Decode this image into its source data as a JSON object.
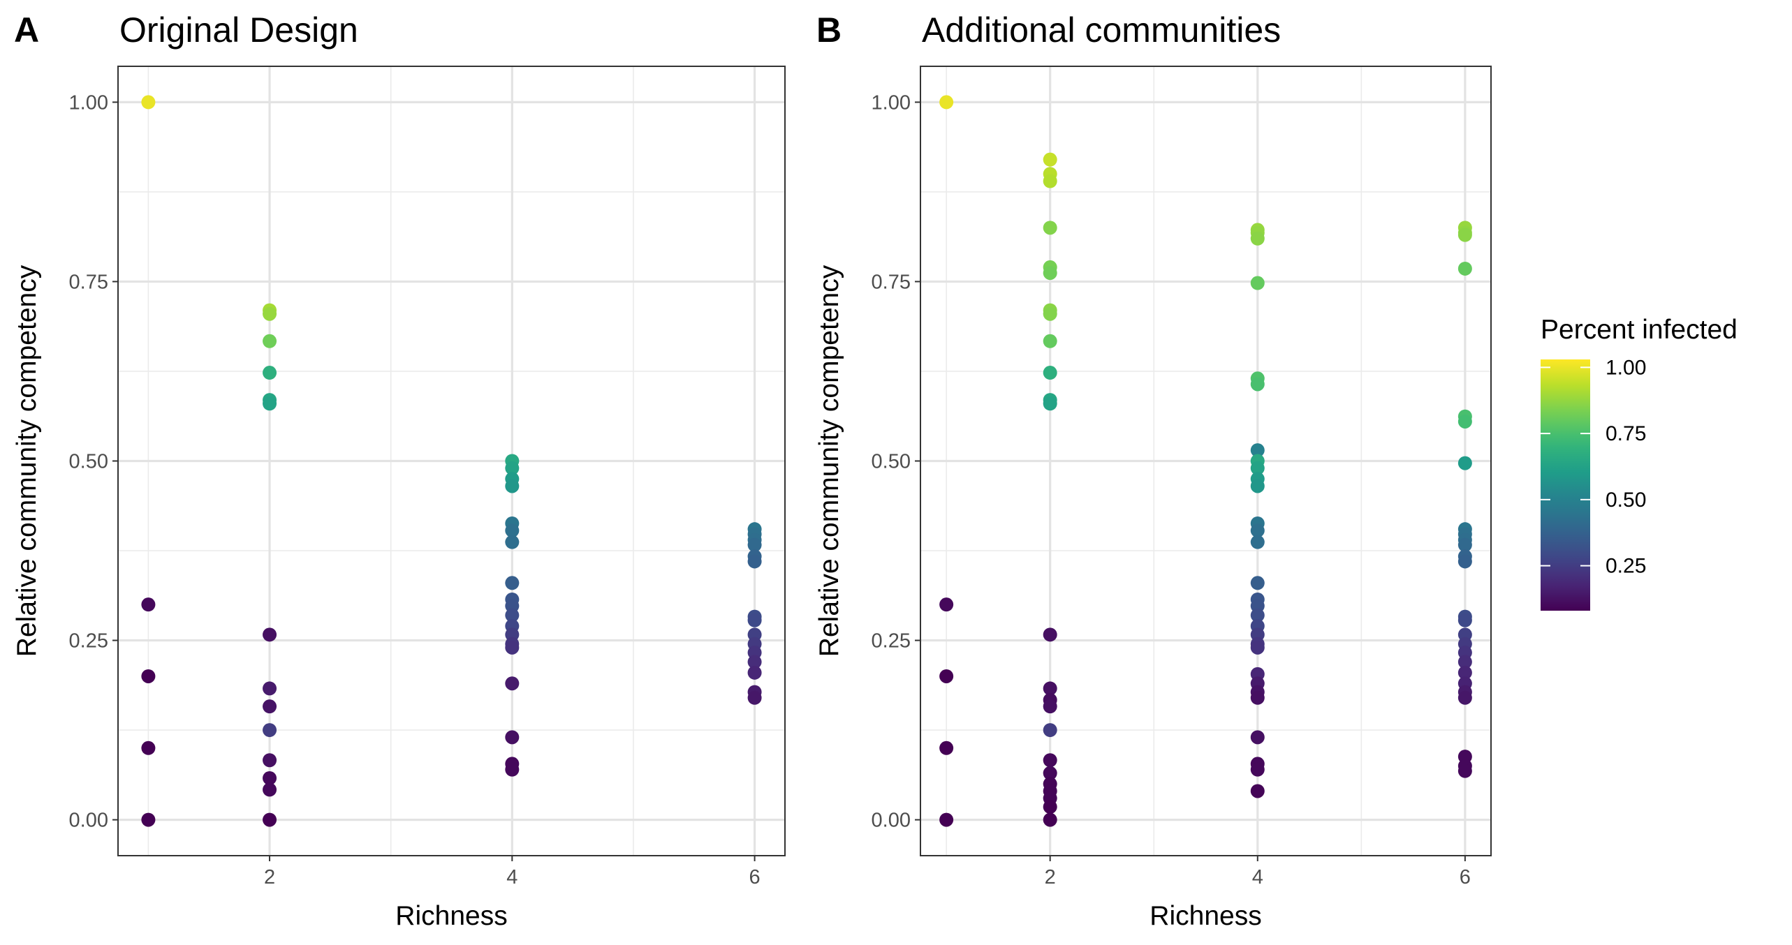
{
  "chart_data": [
    {
      "type": "scatter",
      "panel_label": "A",
      "title": "Original Design",
      "x_label": "Richness",
      "y_label": "Relative community competency",
      "xlim": [
        0.75,
        6.25
      ],
      "ylim": [
        -0.05,
        1.05
      ],
      "xticks": [
        2,
        4,
        6
      ],
      "yticks": [
        {
          "value": 0,
          "label": "0.00"
        },
        {
          "value": 0.25,
          "label": "0.25"
        },
        {
          "value": 0.5,
          "label": "0.50"
        },
        {
          "value": 0.75,
          "label": "0.75"
        },
        {
          "value": 1,
          "label": "1.00"
        }
      ],
      "grid": true,
      "colormap": "viridis",
      "x": [
        1,
        1,
        1,
        1,
        1,
        2,
        2,
        2,
        2,
        2,
        2,
        2,
        2,
        2,
        2,
        2,
        2,
        2,
        2,
        4,
        4,
        4,
        4,
        4,
        4,
        4,
        4,
        4,
        4,
        4,
        4,
        4,
        4,
        4,
        4,
        4,
        4,
        4,
        6,
        6,
        6,
        6,
        6,
        6,
        6,
        6,
        6,
        6,
        6,
        6,
        6,
        6,
        6
      ],
      "y": [
        1.0,
        0.3,
        0.2,
        0.1,
        0.0,
        0.71,
        0.705,
        0.667,
        0.623,
        0.585,
        0.58,
        0.258,
        0.183,
        0.158,
        0.125,
        0.083,
        0.058,
        0.042,
        0.0,
        0.5,
        0.49,
        0.475,
        0.465,
        0.413,
        0.403,
        0.387,
        0.33,
        0.307,
        0.298,
        0.285,
        0.27,
        0.258,
        0.245,
        0.24,
        0.19,
        0.115,
        0.078,
        0.07,
        0.405,
        0.398,
        0.39,
        0.383,
        0.367,
        0.36,
        0.283,
        0.278,
        0.258,
        0.245,
        0.233,
        0.22,
        0.205,
        0.178,
        0.17
      ],
      "percent_infected": [
        1.0,
        0.1,
        0.08,
        0.08,
        0.08,
        0.9,
        0.88,
        0.82,
        0.68,
        0.64,
        0.63,
        0.12,
        0.15,
        0.13,
        0.25,
        0.12,
        0.1,
        0.1,
        0.08,
        0.65,
        0.63,
        0.6,
        0.58,
        0.45,
        0.43,
        0.42,
        0.36,
        0.33,
        0.32,
        0.3,
        0.28,
        0.25,
        0.23,
        0.22,
        0.15,
        0.12,
        0.1,
        0.1,
        0.45,
        0.43,
        0.42,
        0.4,
        0.38,
        0.37,
        0.3,
        0.29,
        0.26,
        0.24,
        0.22,
        0.2,
        0.18,
        0.15,
        0.14
      ]
    },
    {
      "type": "scatter",
      "panel_label": "B",
      "title": "Additional communities",
      "x_label": "Richness",
      "y_label": "Relative community competency",
      "xlim": [
        0.75,
        6.25
      ],
      "ylim": [
        -0.05,
        1.05
      ],
      "xticks": [
        2,
        4,
        6
      ],
      "yticks": [
        {
          "value": 0,
          "label": "0.00"
        },
        {
          "value": 0.25,
          "label": "0.25"
        },
        {
          "value": 0.5,
          "label": "0.50"
        },
        {
          "value": 0.75,
          "label": "0.75"
        },
        {
          "value": 1,
          "label": "1.00"
        }
      ],
      "grid": true,
      "colormap": "viridis",
      "x": [
        1,
        1,
        1,
        1,
        1,
        2,
        2,
        2,
        2,
        2,
        2,
        2,
        2,
        2,
        2,
        2,
        2,
        2,
        2,
        2,
        2,
        2,
        2,
        2,
        2,
        2,
        2,
        2,
        2,
        4,
        4,
        4,
        4,
        4,
        4,
        4,
        4,
        4,
        4,
        4,
        4,
        4,
        4,
        4,
        4,
        4,
        4,
        4,
        4,
        4,
        4,
        4,
        4,
        4,
        4,
        4,
        4,
        4,
        4,
        6,
        6,
        6,
        6,
        6,
        6,
        6,
        6,
        6,
        6,
        6,
        6,
        6,
        6,
        6,
        6,
        6,
        6,
        6,
        6,
        6,
        6,
        6,
        6,
        6,
        6
      ],
      "y": [
        1.0,
        0.3,
        0.2,
        0.1,
        0.0,
        0.92,
        0.9,
        0.89,
        0.825,
        0.77,
        0.762,
        0.71,
        0.705,
        0.667,
        0.623,
        0.585,
        0.58,
        0.258,
        0.183,
        0.167,
        0.158,
        0.125,
        0.083,
        0.065,
        0.05,
        0.04,
        0.03,
        0.018,
        0.0,
        0.822,
        0.818,
        0.81,
        0.748,
        0.615,
        0.607,
        0.515,
        0.5,
        0.49,
        0.475,
        0.465,
        0.413,
        0.403,
        0.387,
        0.33,
        0.307,
        0.298,
        0.285,
        0.27,
        0.258,
        0.245,
        0.24,
        0.203,
        0.19,
        0.178,
        0.17,
        0.115,
        0.078,
        0.07,
        0.04,
        0.825,
        0.818,
        0.815,
        0.768,
        0.562,
        0.555,
        0.497,
        0.405,
        0.398,
        0.39,
        0.383,
        0.367,
        0.36,
        0.283,
        0.278,
        0.258,
        0.245,
        0.233,
        0.22,
        0.205,
        0.19,
        0.178,
        0.17,
        0.088,
        0.075,
        0.068
      ],
      "percent_infected": [
        1.0,
        0.1,
        0.08,
        0.08,
        0.08,
        0.95,
        0.93,
        0.92,
        0.85,
        0.83,
        0.82,
        0.86,
        0.85,
        0.8,
        0.68,
        0.64,
        0.63,
        0.12,
        0.12,
        0.11,
        0.12,
        0.25,
        0.1,
        0.1,
        0.09,
        0.09,
        0.09,
        0.08,
        0.08,
        0.88,
        0.87,
        0.86,
        0.8,
        0.76,
        0.75,
        0.5,
        0.65,
        0.63,
        0.6,
        0.58,
        0.45,
        0.43,
        0.42,
        0.36,
        0.33,
        0.32,
        0.3,
        0.28,
        0.25,
        0.23,
        0.22,
        0.18,
        0.15,
        0.13,
        0.12,
        0.12,
        0.1,
        0.1,
        0.09,
        0.88,
        0.87,
        0.86,
        0.8,
        0.75,
        0.74,
        0.6,
        0.45,
        0.43,
        0.42,
        0.4,
        0.38,
        0.37,
        0.3,
        0.29,
        0.26,
        0.24,
        0.22,
        0.2,
        0.18,
        0.17,
        0.15,
        0.14,
        0.1,
        0.1,
        0.1
      ],
      "colorbar": {
        "title": "Percent infected",
        "lim": [
          0.08,
          1.03
        ],
        "ticks": [
          {
            "value": 0.25,
            "label": "0.25"
          },
          {
            "value": 0.5,
            "label": "0.50"
          },
          {
            "value": 0.75,
            "label": "0.75"
          },
          {
            "value": 1,
            "label": "1.00"
          }
        ]
      }
    }
  ]
}
